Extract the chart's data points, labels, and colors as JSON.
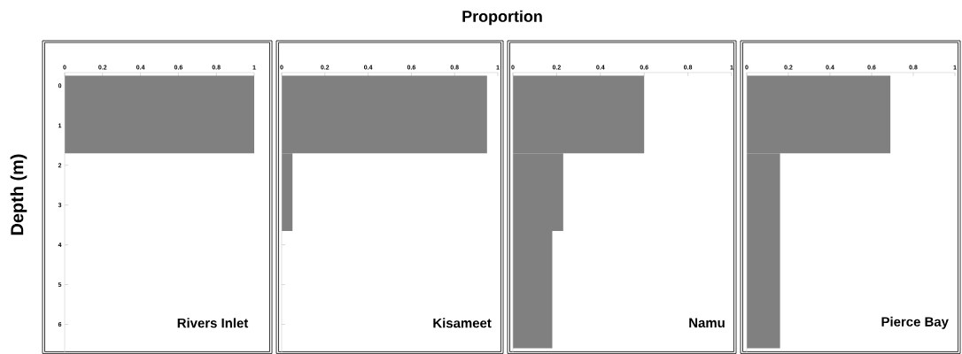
{
  "chart_data": [
    {
      "type": "histogram",
      "orientation": "horizontal",
      "ylabel": "Depth (m)",
      "bins": [
        -0.25,
        1.7
      ],
      "values": [
        1.0
      ],
      "color": "#808080",
      "xlim": [
        0,
        1
      ],
      "xticks": [
        0,
        0.2,
        0.4,
        0.6,
        0.8,
        1
      ],
      "ylim": [
        6.7,
        -0.33
      ],
      "yticks": [
        0,
        1,
        2,
        3,
        4,
        5,
        6
      ],
      "annotations": [
        "Rivers Inlet"
      ]
    },
    {
      "type": "histogram",
      "orientation": "horizontal",
      "title": "Proportion",
      "bins": [
        -0.25,
        1.7,
        3.65
      ],
      "values": [
        0.95,
        0.05
      ],
      "color": "#808080",
      "xlim": [
        0,
        1
      ],
      "xticks": [
        0,
        0.2,
        0.4,
        0.6,
        0.8,
        1
      ],
      "ylim": [
        6.7,
        -0.33
      ],
      "yticks": [
        0,
        1,
        2,
        3,
        4,
        5,
        6
      ],
      "tick_labels": "x",
      "annotations": [
        "Kisameet"
      ]
    },
    {
      "type": "histogram",
      "orientation": "horizontal",
      "bins": [
        -0.25,
        1.7,
        3.65,
        6.6
      ],
      "values": [
        0.6,
        0.23,
        0.18
      ],
      "color": "#808080",
      "xlim": [
        0,
        1
      ],
      "xticks": [
        0,
        0.2,
        0.4,
        0.6,
        0.8,
        1
      ],
      "ylim": [
        6.7,
        -0.33
      ],
      "yticks": [
        0,
        1,
        2,
        3,
        4,
        5,
        6
      ],
      "tick_labels": "x",
      "annotations": [
        "Namu"
      ]
    },
    {
      "type": "histogram",
      "orientation": "horizontal",
      "bins": [
        -0.25,
        1.7,
        6.6
      ],
      "values": [
        0.69,
        0.16
      ],
      "color": "#808080",
      "xlim": [
        0,
        1
      ],
      "xticks": [
        0,
        0.2,
        0.4,
        0.6,
        0.8,
        1
      ],
      "ylim": [
        6.7,
        -0.33
      ],
      "yticks": [
        0,
        1,
        2,
        3,
        4,
        5,
        6
      ],
      "tick_labels": "x",
      "annotations": [
        "Pierce Bay"
      ]
    }
  ]
}
